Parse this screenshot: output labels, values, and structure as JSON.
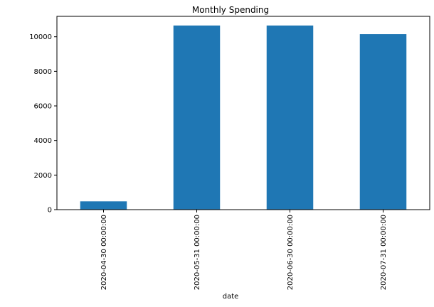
{
  "chart_data": {
    "type": "bar",
    "title": "Monthly Spending",
    "xlabel": "date",
    "ylabel": "",
    "categories": [
      "2020-04-30 00:00:00",
      "2020-05-31 00:00:00",
      "2020-06-30 00:00:00",
      "2020-07-31 00:00:00"
    ],
    "values": [
      480,
      10650,
      10650,
      10150
    ],
    "ylim": [
      0,
      11180
    ],
    "yticks": [
      0,
      2000,
      4000,
      6000,
      8000,
      10000
    ],
    "ytick_labels": [
      "0",
      "2000",
      "4000",
      "6000",
      "8000",
      "10000"
    ],
    "grid": false,
    "legend": "none",
    "bar_color": "#1f77b4"
  }
}
